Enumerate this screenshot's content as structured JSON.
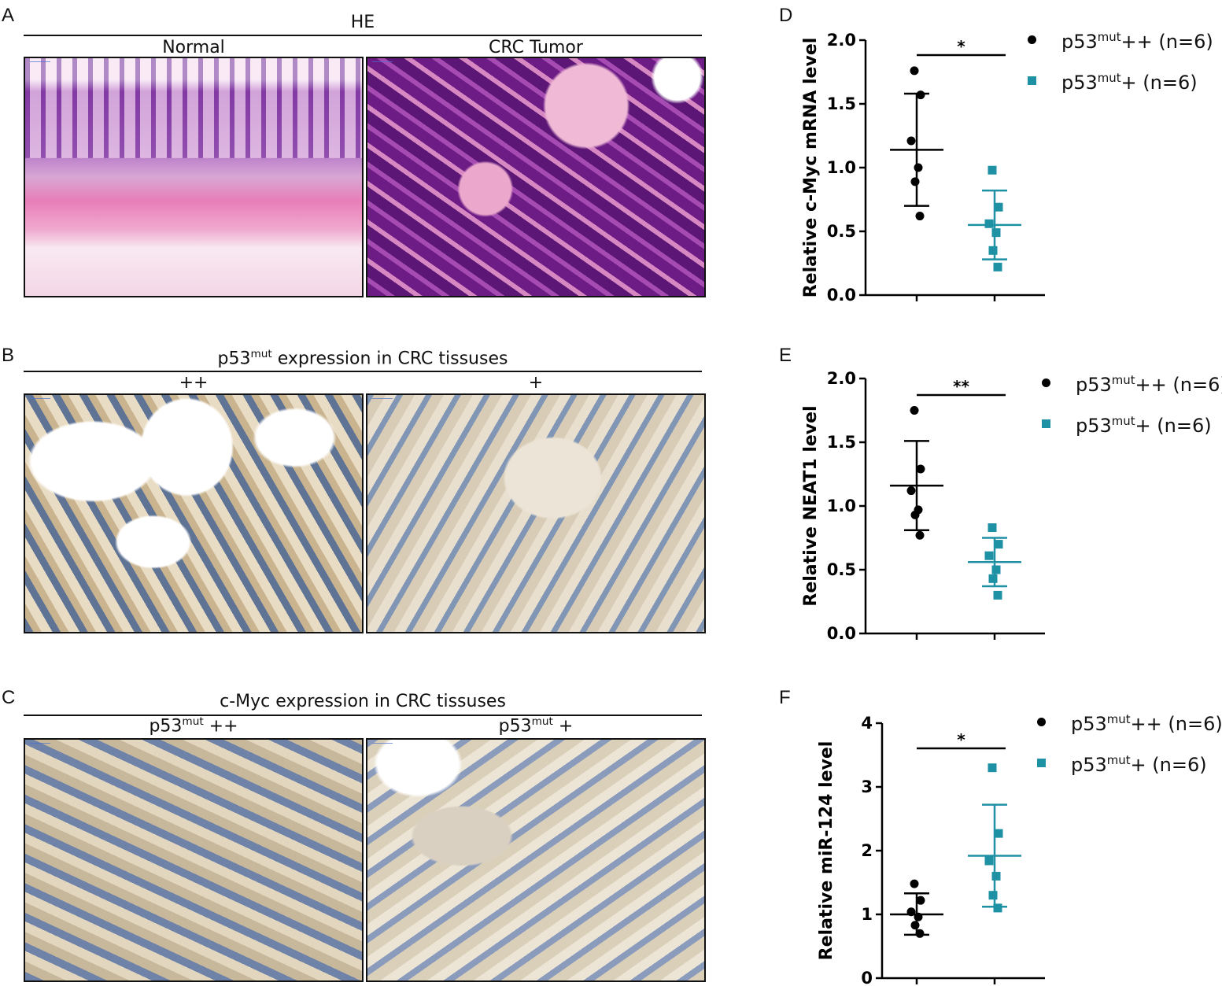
{
  "panels": {
    "A": {
      "letter": "A",
      "header": "HE",
      "left_label": "Normal",
      "right_label": "CRC  Tumor"
    },
    "B": {
      "letter": "B",
      "header_pre": "p53",
      "header_sup": "mut",
      "header_post": " expression in CRC tissuses",
      "left_label": "++",
      "right_label": "+"
    },
    "C": {
      "letter": "C",
      "header": "c-Myc expression in CRC tissuses",
      "left_pre": "p53",
      "left_sup": "mut",
      "left_post": " ++",
      "right_pre": "p53",
      "right_sup": "mut",
      "right_post": " +"
    },
    "D": {
      "letter": "D"
    },
    "E": {
      "letter": "E"
    },
    "F": {
      "letter": "F"
    }
  },
  "legend": {
    "series1_pre": "p53",
    "series1_sup": "mut",
    "series1_post": "++ (n=6)",
    "series2_pre": "p53",
    "series2_sup": "mut",
    "series2_post": "+ (n=6)"
  },
  "colors": {
    "series1": "#000000",
    "series2": "#1f91a5"
  },
  "chart_data": [
    {
      "type": "scatter",
      "panel": "D",
      "ylabel": "Relative c-Myc mRNA level",
      "ylim": [
        0,
        2
      ],
      "yticks": [
        "0.0",
        "0.5",
        "1.0",
        "1.5",
        "2.0"
      ],
      "significance": "*",
      "series": [
        {
          "name": "p53mut++ (n=6)",
          "values": [
            1.76,
            1.57,
            1.21,
            1.0,
            0.89,
            0.62
          ],
          "mean": 1.14,
          "sd_upper": 1.58,
          "sd_lower": 0.7
        },
        {
          "name": "p53mut+ (n=6)",
          "values": [
            0.98,
            0.69,
            0.56,
            0.49,
            0.35,
            0.22
          ],
          "mean": 0.55,
          "sd_upper": 0.82,
          "sd_lower": 0.28
        }
      ]
    },
    {
      "type": "scatter",
      "panel": "E",
      "ylabel": "Relative NEAT1 level",
      "ylim": [
        0,
        2
      ],
      "yticks": [
        "0.0",
        "0.5",
        "1.0",
        "1.5",
        "2.0"
      ],
      "significance": "**",
      "series": [
        {
          "name": "p53mut++ (n=6)",
          "values": [
            1.75,
            1.29,
            1.12,
            0.97,
            0.93,
            0.77
          ],
          "mean": 1.16,
          "sd_upper": 1.51,
          "sd_lower": 0.81
        },
        {
          "name": "p53mut+ (n=6)",
          "values": [
            0.83,
            0.7,
            0.61,
            0.5,
            0.43,
            0.3
          ],
          "mean": 0.56,
          "sd_upper": 0.75,
          "sd_lower": 0.37
        }
      ]
    },
    {
      "type": "scatter",
      "panel": "F",
      "ylabel": "Relative miR-124 level",
      "ylim": [
        0,
        4
      ],
      "yticks": [
        "0",
        "1",
        "2",
        "3",
        "4"
      ],
      "significance": "*",
      "series": [
        {
          "name": "p53mut++ (n=6)",
          "values": [
            1.48,
            1.22,
            1.04,
            0.96,
            0.83,
            0.7
          ],
          "mean": 1.0,
          "sd_upper": 1.33,
          "sd_lower": 0.68
        },
        {
          "name": "p53mut+ (n=6)",
          "values": [
            3.3,
            2.27,
            1.84,
            1.6,
            1.3,
            1.1
          ],
          "mean": 1.92,
          "sd_upper": 2.72,
          "sd_lower": 1.12
        }
      ]
    }
  ]
}
